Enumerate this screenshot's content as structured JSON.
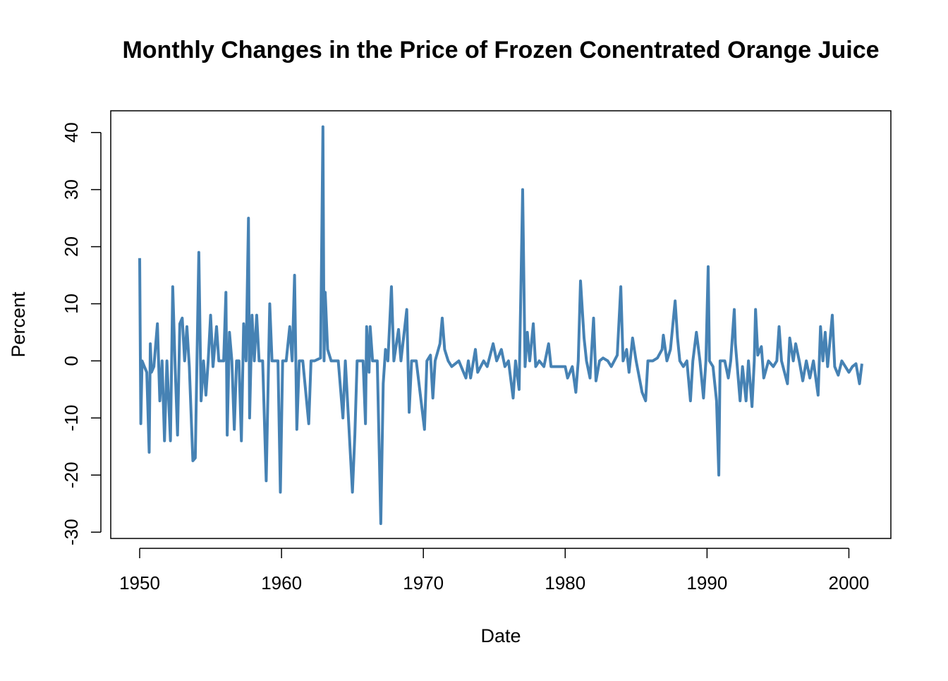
{
  "chart_data": {
    "type": "line",
    "title": "Monthly Changes in the Price of Frozen Conentrated Orange Juice",
    "x_label": "Date",
    "y_label": "Percent",
    "color": "#4682b4",
    "xlim": [
      1947.96,
      2002.96
    ],
    "ylim": [
      -31.1,
      43.8
    ],
    "xticks": [
      1950,
      1960,
      1970,
      1980,
      1990,
      2000
    ],
    "yticks": [
      -30,
      -20,
      -10,
      0,
      10,
      20,
      30,
      40
    ],
    "x": [
      1950.0,
      1950.08,
      1950.17,
      1950.33,
      1950.5,
      1950.67,
      1950.75,
      1950.83,
      1951.0,
      1951.25,
      1951.42,
      1951.58,
      1951.75,
      1951.92,
      1952.17,
      1952.33,
      1952.5,
      1952.67,
      1952.83,
      1953.0,
      1953.17,
      1953.33,
      1953.5,
      1953.75,
      1953.92,
      1954.17,
      1954.33,
      1954.5,
      1954.67,
      1954.83,
      1955.0,
      1955.17,
      1955.42,
      1955.58,
      1955.92,
      1956.08,
      1956.17,
      1956.33,
      1956.5,
      1956.67,
      1956.83,
      1957.0,
      1957.17,
      1957.33,
      1957.5,
      1957.67,
      1957.75,
      1957.92,
      1958.08,
      1958.25,
      1958.42,
      1958.67,
      1958.92,
      1959.17,
      1959.33,
      1959.5,
      1959.75,
      1959.92,
      1960.08,
      1960.33,
      1960.58,
      1960.75,
      1960.92,
      1961.08,
      1961.25,
      1961.5,
      1961.92,
      1962.08,
      1962.33,
      1962.75,
      1962.92,
      1963.0,
      1963.08,
      1963.25,
      1963.5,
      1964.0,
      1964.33,
      1964.5,
      1965.0,
      1965.17,
      1965.33,
      1965.75,
      1965.92,
      1966.0,
      1966.17,
      1966.25,
      1966.42,
      1966.75,
      1967.0,
      1967.17,
      1967.33,
      1967.5,
      1967.75,
      1967.92,
      1968.25,
      1968.42,
      1968.83,
      1969.0,
      1969.17,
      1969.5,
      1970.08,
      1970.25,
      1970.5,
      1970.67,
      1970.83,
      1971.17,
      1971.33,
      1971.5,
      1971.75,
      1972.0,
      1972.5,
      1973.0,
      1973.17,
      1973.33,
      1973.67,
      1973.83,
      1974.25,
      1974.5,
      1974.92,
      1975.17,
      1975.5,
      1975.75,
      1976.0,
      1976.33,
      1976.5,
      1976.75,
      1977.0,
      1977.17,
      1977.33,
      1977.5,
      1977.75,
      1977.92,
      1978.17,
      1978.5,
      1978.83,
      1979.0,
      1979.5,
      1980.0,
      1980.17,
      1980.5,
      1980.75,
      1980.92,
      1981.08,
      1981.33,
      1981.5,
      1981.75,
      1982.0,
      1982.17,
      1982.42,
      1982.67,
      1983.0,
      1983.25,
      1983.67,
      1983.92,
      1984.08,
      1984.33,
      1984.5,
      1984.75,
      1985.0,
      1985.42,
      1985.67,
      1985.83,
      1986.17,
      1986.5,
      1986.83,
      1986.92,
      1987.17,
      1987.42,
      1987.75,
      1987.92,
      1988.08,
      1988.33,
      1988.58,
      1988.83,
      1989.0,
      1989.25,
      1989.5,
      1989.75,
      1989.92,
      1990.08,
      1990.17,
      1990.42,
      1990.67,
      1990.83,
      1990.92,
      1991.25,
      1991.5,
      1991.67,
      1991.92,
      1992.0,
      1992.33,
      1992.5,
      1992.75,
      1992.92,
      1993.17,
      1993.33,
      1993.42,
      1993.58,
      1993.83,
      1994.0,
      1994.33,
      1994.67,
      1994.92,
      1995.08,
      1995.25,
      1995.67,
      1995.83,
      1996.08,
      1996.25,
      1996.5,
      1996.75,
      1997.0,
      1997.25,
      1997.5,
      1997.83,
      1998.0,
      1998.17,
      1998.33,
      1998.5,
      1998.83,
      1999.0,
      1999.25,
      1999.5,
      1999.75,
      2000.0,
      2000.25,
      2000.5,
      2000.75,
      2000.92
    ],
    "values": [
      18,
      -11,
      0,
      -1,
      -2,
      -16,
      3,
      -2,
      -1,
      6.5,
      -7,
      0,
      -14,
      0,
      -14,
      13,
      -1,
      -13,
      6.5,
      7.5,
      0,
      6,
      -1,
      -17.5,
      -17,
      19,
      -7,
      0,
      -6,
      0,
      8,
      -1,
      6,
      0,
      0,
      12,
      -13,
      5,
      0,
      -12,
      0,
      0,
      -14,
      6.5,
      0,
      25,
      -10,
      8,
      0,
      8,
      0,
      0,
      -21,
      10,
      0,
      0,
      0,
      -23,
      0,
      0,
      6,
      0,
      15,
      -12,
      0,
      0,
      -11,
      0,
      0,
      0.5,
      41,
      0,
      12,
      2,
      0,
      0,
      -10,
      0,
      -23,
      -13,
      0,
      0,
      -11,
      6,
      -2,
      6,
      0,
      0,
      -28.5,
      -4,
      2,
      0,
      13,
      0,
      5.5,
      0,
      9,
      -9,
      0,
      0,
      -12,
      0,
      1,
      -6.5,
      0,
      3,
      7.5,
      2,
      0,
      -1,
      0,
      -3,
      0,
      -3,
      2,
      -2,
      0,
      -1,
      3,
      0,
      2,
      -1,
      0,
      -6.5,
      0,
      -5,
      30,
      -1,
      5,
      0,
      6.5,
      -1,
      0,
      -1,
      3,
      -1,
      -1,
      -1,
      -3,
      -1,
      -5.5,
      0,
      14,
      4,
      0,
      -3,
      7.5,
      -3.5,
      0,
      0.5,
      0,
      -1,
      1,
      13,
      0,
      2,
      -2,
      4,
      0,
      -5.5,
      -7,
      0,
      0,
      0.5,
      2,
      4.5,
      0,
      2,
      10.5,
      4,
      0,
      -1,
      0,
      -7,
      0,
      5,
      0,
      -6.5,
      0,
      16.5,
      0,
      -1,
      -7,
      -20,
      0,
      0,
      -3,
      0,
      9,
      3,
      -7,
      -1,
      -7,
      0,
      -8,
      0,
      9,
      1,
      2.5,
      -3,
      0,
      -1,
      0,
      6,
      0,
      -4,
      4,
      0,
      3,
      0,
      -3.5,
      0,
      -3,
      0,
      -6,
      6,
      0,
      5,
      -1,
      8,
      -1,
      -2.5,
      0,
      -1,
      -2,
      -1,
      -0.5,
      -4,
      -0.5
    ]
  }
}
